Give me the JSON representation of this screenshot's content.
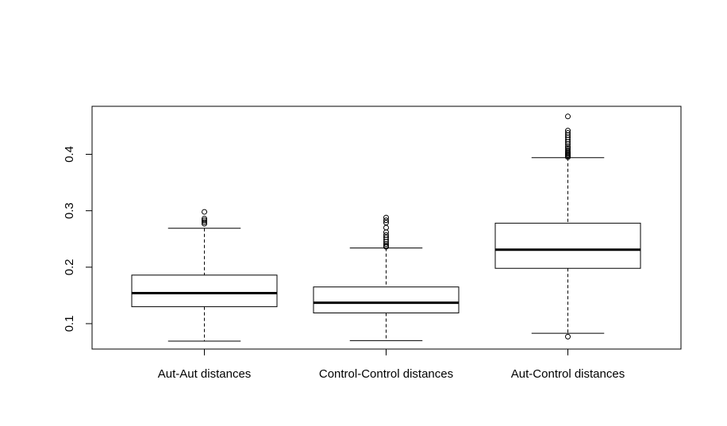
{
  "chart_data": {
    "type": "boxplot",
    "title": "",
    "xlabel": "",
    "ylabel": "",
    "ylim": [
      0.055,
      0.485
    ],
    "y_ticks": [
      0.1,
      0.2,
      0.3,
      0.4
    ],
    "y_tick_labels": [
      "0.1",
      "0.2",
      "0.3",
      "0.4"
    ],
    "grid": false,
    "categories": [
      "Aut-Aut distances",
      "Control-Control distances",
      "Aut-Control distances"
    ],
    "boxes": [
      {
        "category": "Aut-Aut distances",
        "whisker_low": 0.069,
        "q1": 0.13,
        "median": 0.154,
        "q3": 0.186,
        "whisker_high": 0.269,
        "outliers": [
          0.277,
          0.28,
          0.283,
          0.286,
          0.298
        ]
      },
      {
        "category": "Control-Control distances",
        "whisker_low": 0.07,
        "q1": 0.119,
        "median": 0.137,
        "q3": 0.165,
        "whisker_high": 0.234,
        "outliers": [
          0.236,
          0.238,
          0.241,
          0.245,
          0.249,
          0.253,
          0.257,
          0.262,
          0.27,
          0.279,
          0.283,
          0.288
        ]
      },
      {
        "category": "Aut-Control distances",
        "whisker_low": 0.083,
        "q1": 0.198,
        "median": 0.231,
        "q3": 0.278,
        "whisker_high": 0.394,
        "outliers": [
          0.077,
          0.395,
          0.397,
          0.399,
          0.401,
          0.403,
          0.405,
          0.408,
          0.411,
          0.414,
          0.418,
          0.422,
          0.426,
          0.43,
          0.434,
          0.438,
          0.442,
          0.467
        ]
      }
    ]
  }
}
